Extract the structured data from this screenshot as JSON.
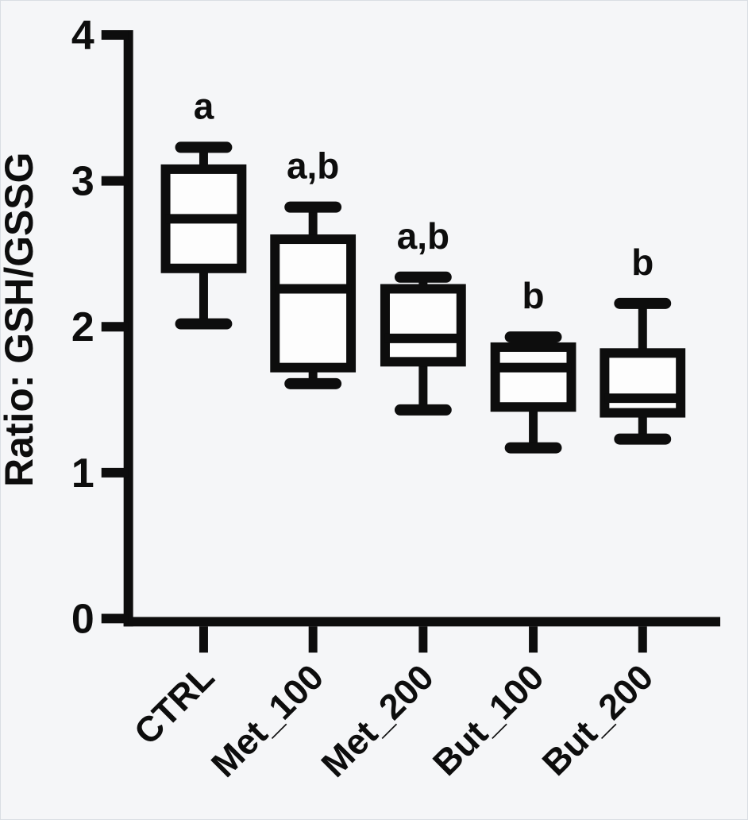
{
  "figure": {
    "background_color": "#f5f6f8",
    "ink_color": "#0d0d0d",
    "box_fill_color": "#fdfdfd"
  },
  "chart_data": {
    "type": "box",
    "title": "",
    "xlabel": "",
    "ylabel": "Ratio: GSH/GSSG",
    "ylim": [
      0,
      4
    ],
    "yticks": [
      0,
      1,
      2,
      3,
      4
    ],
    "grid": false,
    "legend": false,
    "categories": [
      "CTRL",
      "Met_100",
      "Met_200",
      "But_100",
      "But_200"
    ],
    "series": [
      {
        "name": "CTRL",
        "min": 2.02,
        "q1": 2.4,
        "median": 2.74,
        "q3": 3.08,
        "max": 3.23
      },
      {
        "name": "Met_100",
        "min": 1.61,
        "q1": 1.72,
        "median": 2.26,
        "q3": 2.6,
        "max": 2.82
      },
      {
        "name": "Met_200",
        "min": 1.43,
        "q1": 1.76,
        "median": 1.92,
        "q3": 2.26,
        "max": 2.34
      },
      {
        "name": "But_100",
        "min": 1.17,
        "q1": 1.45,
        "median": 1.72,
        "q3": 1.86,
        "max": 1.93
      },
      {
        "name": "But_200",
        "min": 1.23,
        "q1": 1.41,
        "median": 1.51,
        "q3": 1.82,
        "max": 2.16
      }
    ],
    "significance_letters": [
      "a",
      "a,b",
      "a,b",
      "b",
      "b"
    ]
  }
}
